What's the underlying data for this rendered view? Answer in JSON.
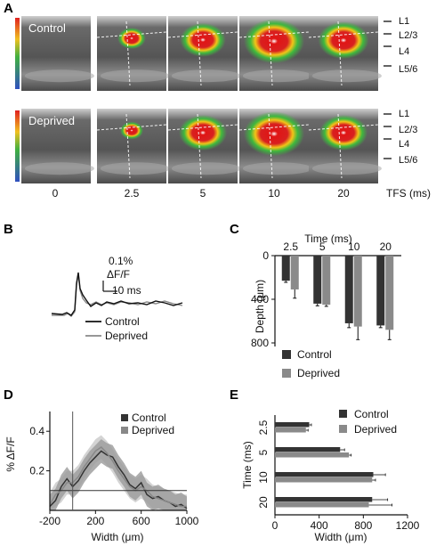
{
  "panels": {
    "a": "A",
    "b": "B",
    "c": "C",
    "d": "D",
    "e": "E"
  },
  "panel_a": {
    "rows": [
      {
        "condition": "Control",
        "intensity": [
          0,
          0.35,
          0.7,
          1.0,
          0.8
        ]
      },
      {
        "condition": "Deprived",
        "intensity": [
          0,
          0.25,
          0.75,
          1.0,
          0.75
        ]
      }
    ],
    "layers": [
      "L1",
      "L2/3",
      "L4",
      "L5/6"
    ],
    "times": [
      "0",
      "2.5",
      "5",
      "10",
      "20"
    ],
    "time_axis_label": "TFS (ms)"
  },
  "panel_b": {
    "scale_amplitude": "0.1%",
    "scale_units": "ΔF/F",
    "scale_time": "10 ms",
    "legend": [
      "Control",
      "Deprived"
    ]
  },
  "chart_data": [
    {
      "type": "bar",
      "panel": "C",
      "title": "Time (ms)",
      "categories": [
        "2.5",
        "5",
        "10",
        "20"
      ],
      "ylabel": "Depth (μm)",
      "ylim": [
        0,
        800
      ],
      "yticks": [
        "0",
        "400",
        "800"
      ],
      "series": [
        {
          "name": "Control",
          "color": "#333333",
          "values": [
            230,
            440,
            620,
            640
          ],
          "errors": [
            15,
            20,
            40,
            20
          ]
        },
        {
          "name": "Deprived",
          "color": "#8a8a8a",
          "values": [
            310,
            450,
            650,
            680
          ],
          "errors": [
            80,
            15,
            120,
            90
          ]
        }
      ]
    },
    {
      "type": "line",
      "panel": "D",
      "xlabel": "Width (μm)",
      "ylabel": "% ΔF/F",
      "xlim": [
        -200,
        1000
      ],
      "ylim": [
        0,
        0.5
      ],
      "xticks": [
        "-200",
        "200",
        "600",
        "1000"
      ],
      "yticks": [
        "0.2",
        "0.4"
      ],
      "threshold": 0.1,
      "series": [
        {
          "name": "Control",
          "color": "#333333",
          "x": [
            -200,
            -150,
            -100,
            -50,
            0,
            50,
            100,
            150,
            200,
            250,
            300,
            350,
            400,
            450,
            500,
            550,
            600,
            650,
            700,
            750,
            800,
            850,
            900,
            950,
            1000
          ],
          "y": [
            0.02,
            0.05,
            0.12,
            0.16,
            0.12,
            0.15,
            0.2,
            0.24,
            0.27,
            0.3,
            0.28,
            0.27,
            0.22,
            0.18,
            0.13,
            0.11,
            0.14,
            0.08,
            0.06,
            0.07,
            0.05,
            0.04,
            0.02,
            0.03,
            0.01
          ]
        },
        {
          "name": "Deprived",
          "color": "#888888",
          "x": [
            -200,
            -150,
            -100,
            -50,
            0,
            50,
            100,
            150,
            200,
            250,
            300,
            350,
            400,
            450,
            500,
            550,
            600,
            650,
            700,
            750,
            800,
            850,
            900,
            950,
            1000
          ],
          "y": [
            0.03,
            0.08,
            0.1,
            0.14,
            0.14,
            0.17,
            0.22,
            0.26,
            0.3,
            0.32,
            0.29,
            0.25,
            0.2,
            0.16,
            0.12,
            0.1,
            0.12,
            0.1,
            0.07,
            0.06,
            0.05,
            0.04,
            0.03,
            0.02,
            0.02
          ]
        }
      ]
    },
    {
      "type": "bar",
      "panel": "E",
      "orientation": "horizontal",
      "categories": [
        "2.5",
        "5",
        "10",
        "20"
      ],
      "xlabel": "Width (μm)",
      "ylabel": "Time (ms)",
      "xlim": [
        0,
        1200
      ],
      "xticks": [
        "0",
        "400",
        "800",
        "1200"
      ],
      "series": [
        {
          "name": "Control",
          "color": "#333333",
          "values": [
            310,
            590,
            890,
            880
          ],
          "errors": [
            20,
            40,
            110,
            140
          ]
        },
        {
          "name": "Deprived",
          "color": "#8a8a8a",
          "values": [
            280,
            670,
            880,
            850
          ],
          "errors": [
            20,
            20,
            30,
            210
          ]
        }
      ]
    }
  ]
}
